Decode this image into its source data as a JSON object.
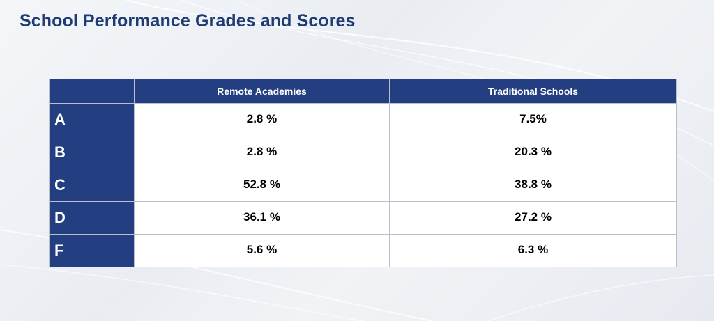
{
  "title": "School Performance Grades and Scores",
  "colors": {
    "header_bg": "#233f82",
    "title_color": "#1f3b73",
    "cell_bg": "#ffffff"
  },
  "table": {
    "corner": "",
    "columns": [
      "Remote Academies",
      "Traditional Schools"
    ],
    "rows": [
      {
        "grade": "A",
        "values": [
          "2.8 %",
          "7.5%"
        ]
      },
      {
        "grade": "B",
        "values": [
          "2.8 %",
          "20.3 %"
        ]
      },
      {
        "grade": "C",
        "values": [
          "52.8 %",
          "38.8 %"
        ]
      },
      {
        "grade": "D",
        "values": [
          "36.1 %",
          "27.2 %"
        ]
      },
      {
        "grade": "F",
        "values": [
          "5.6 %",
          "6.3 %"
        ]
      }
    ]
  }
}
